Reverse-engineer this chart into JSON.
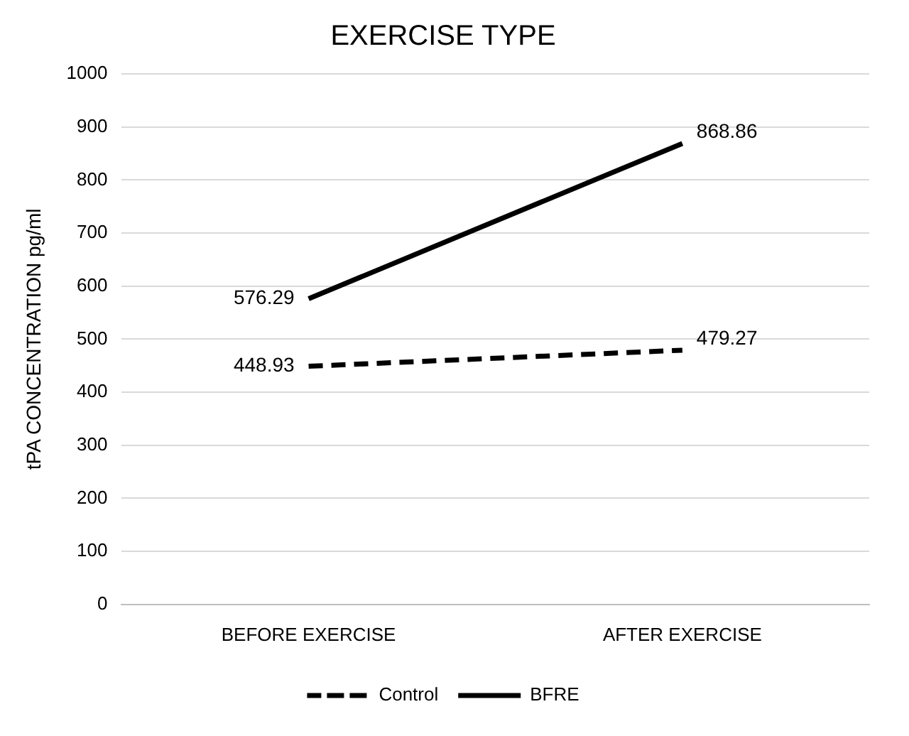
{
  "chart_data": {
    "type": "line",
    "title": "EXERCISE TYPE",
    "ylabel": "tPA CONCENTRATION pg/ml",
    "categories": [
      "BEFORE EXERCISE",
      "AFTER EXERCISE"
    ],
    "series": [
      {
        "name": "Control",
        "color": "#000000",
        "values": [
          448.93,
          479.27
        ],
        "line_style": "dashed"
      },
      {
        "name": "BFRE",
        "color": "#000000",
        "values": [
          576.29,
          868.86
        ],
        "line_style": "solid"
      }
    ],
    "ylim": [
      0,
      1000
    ],
    "yticks": [
      0,
      100,
      200,
      300,
      400,
      500,
      600,
      700,
      800,
      900,
      1000
    ],
    "grid": "y",
    "legend": "bottom",
    "marker": "none",
    "data_labels": true
  }
}
